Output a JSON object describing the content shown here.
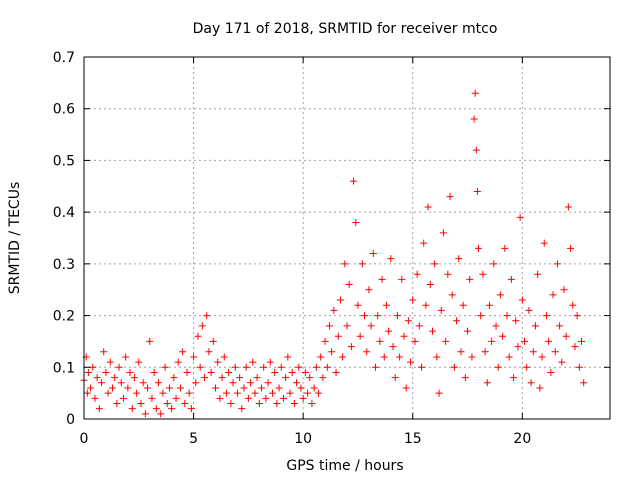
{
  "chart_data": {
    "type": "scatter",
    "title": "Day 171 of 2018, SRMTID for receiver mtco",
    "xlabel": "GPS time / hours",
    "ylabel": "SRMTID / TECUs",
    "xlim": [
      0,
      24
    ],
    "ylim": [
      0,
      0.7
    ],
    "xticks": [
      0,
      5,
      10,
      15,
      20
    ],
    "xtick_labels": [
      "0",
      "5",
      "10",
      "15",
      "20"
    ],
    "yticks": [
      0,
      0.1,
      0.2,
      0.3,
      0.4,
      0.5,
      0.6,
      0.7
    ],
    "ytick_labels": [
      "0",
      "0.1",
      "0.2",
      "0.3",
      "0.4",
      "0.5",
      "0.6",
      "0.7"
    ],
    "grid": true,
    "marker": "+",
    "series": [
      {
        "name": "SRMTID",
        "color": "#ff0000",
        "points": [
          [
            0.0,
            0.075
          ],
          [
            0.1,
            0.12
          ],
          [
            0.15,
            0.05
          ],
          [
            0.2,
            0.09
          ],
          [
            0.3,
            0.06
          ],
          [
            0.4,
            0.1
          ],
          [
            0.5,
            0.04
          ],
          [
            0.6,
            0.08
          ],
          [
            0.7,
            0.02
          ],
          [
            0.8,
            0.07
          ],
          [
            0.9,
            0.13
          ],
          [
            1.0,
            0.09
          ],
          [
            1.1,
            0.05
          ],
          [
            1.2,
            0.11
          ],
          [
            1.3,
            0.06
          ],
          [
            1.4,
            0.08
          ],
          [
            1.5,
            0.03
          ],
          [
            1.6,
            0.1
          ],
          [
            1.7,
            0.07
          ],
          [
            1.8,
            0.04
          ],
          [
            1.9,
            0.12
          ],
          [
            2.0,
            0.06
          ],
          [
            2.1,
            0.09
          ],
          [
            2.2,
            0.02
          ],
          [
            2.3,
            0.08
          ],
          [
            2.4,
            0.05
          ],
          [
            2.5,
            0.11
          ],
          [
            2.6,
            0.03
          ],
          [
            2.7,
            0.07
          ],
          [
            2.8,
            0.01
          ],
          [
            2.9,
            0.06
          ],
          [
            3.0,
            0.15
          ],
          [
            3.1,
            0.04
          ],
          [
            3.2,
            0.09
          ],
          [
            3.3,
            0.02
          ],
          [
            3.4,
            0.07
          ],
          [
            3.5,
            0.01
          ],
          [
            3.6,
            0.05
          ],
          [
            3.7,
            0.1
          ],
          [
            3.8,
            0.03
          ],
          [
            3.9,
            0.06
          ],
          [
            4.0,
            0.02
          ],
          [
            4.1,
            0.08
          ],
          [
            4.2,
            0.04
          ],
          [
            4.3,
            0.11
          ],
          [
            4.4,
            0.06
          ],
          [
            4.5,
            0.13
          ],
          [
            4.6,
            0.03
          ],
          [
            4.7,
            0.09
          ],
          [
            4.8,
            0.05
          ],
          [
            4.9,
            0.02
          ],
          [
            5.0,
            0.12
          ],
          [
            5.1,
            0.07
          ],
          [
            5.2,
            0.16
          ],
          [
            5.3,
            0.1
          ],
          [
            5.4,
            0.18
          ],
          [
            5.5,
            0.08
          ],
          [
            5.6,
            0.2
          ],
          [
            5.7,
            0.13
          ],
          [
            5.8,
            0.09
          ],
          [
            5.9,
            0.15
          ],
          [
            6.0,
            0.06
          ],
          [
            6.1,
            0.11
          ],
          [
            6.2,
            0.04
          ],
          [
            6.3,
            0.08
          ],
          [
            6.4,
            0.12
          ],
          [
            6.5,
            0.05
          ],
          [
            6.6,
            0.09
          ],
          [
            6.7,
            0.03
          ],
          [
            6.8,
            0.07
          ],
          [
            6.9,
            0.1
          ],
          [
            7.0,
            0.05
          ],
          [
            7.1,
            0.08
          ],
          [
            7.2,
            0.02
          ],
          [
            7.3,
            0.06
          ],
          [
            7.4,
            0.1
          ],
          [
            7.5,
            0.04
          ],
          [
            7.6,
            0.07
          ],
          [
            7.7,
            0.11
          ],
          [
            7.8,
            0.05
          ],
          [
            7.9,
            0.08
          ],
          [
            8.0,
            0.03
          ],
          [
            8.1,
            0.06
          ],
          [
            8.2,
            0.1
          ],
          [
            8.3,
            0.04
          ],
          [
            8.4,
            0.07
          ],
          [
            8.5,
            0.11
          ],
          [
            8.6,
            0.05
          ],
          [
            8.7,
            0.09
          ],
          [
            8.8,
            0.03
          ],
          [
            8.9,
            0.06
          ],
          [
            9.0,
            0.1
          ],
          [
            9.1,
            0.04
          ],
          [
            9.2,
            0.08
          ],
          [
            9.3,
            0.12
          ],
          [
            9.4,
            0.05
          ],
          [
            9.5,
            0.09
          ],
          [
            9.6,
            0.03
          ],
          [
            9.7,
            0.07
          ],
          [
            9.8,
            0.1
          ],
          [
            9.9,
            0.06
          ],
          [
            10.0,
            0.04
          ],
          [
            10.1,
            0.09
          ],
          [
            10.2,
            0.05
          ],
          [
            10.3,
            0.08
          ],
          [
            10.4,
            0.03
          ],
          [
            10.5,
            0.06
          ],
          [
            10.6,
            0.1
          ],
          [
            10.7,
            0.05
          ],
          [
            10.8,
            0.12
          ],
          [
            10.9,
            0.08
          ],
          [
            11.0,
            0.15
          ],
          [
            11.1,
            0.1
          ],
          [
            11.2,
            0.18
          ],
          [
            11.3,
            0.13
          ],
          [
            11.4,
            0.21
          ],
          [
            11.5,
            0.09
          ],
          [
            11.6,
            0.16
          ],
          [
            11.7,
            0.23
          ],
          [
            11.8,
            0.12
          ],
          [
            11.9,
            0.3
          ],
          [
            12.0,
            0.18
          ],
          [
            12.1,
            0.26
          ],
          [
            12.2,
            0.14
          ],
          [
            12.3,
            0.46
          ],
          [
            12.4,
            0.38
          ],
          [
            12.5,
            0.22
          ],
          [
            12.6,
            0.16
          ],
          [
            12.7,
            0.3
          ],
          [
            12.8,
            0.2
          ],
          [
            12.9,
            0.13
          ],
          [
            13.0,
            0.25
          ],
          [
            13.1,
            0.18
          ],
          [
            13.2,
            0.32
          ],
          [
            13.3,
            0.1
          ],
          [
            13.4,
            0.2
          ],
          [
            13.5,
            0.15
          ],
          [
            13.6,
            0.27
          ],
          [
            13.7,
            0.12
          ],
          [
            13.8,
            0.22
          ],
          [
            13.9,
            0.17
          ],
          [
            14.0,
            0.31
          ],
          [
            14.1,
            0.14
          ],
          [
            14.2,
            0.08
          ],
          [
            14.3,
            0.2
          ],
          [
            14.4,
            0.12
          ],
          [
            14.5,
            0.27
          ],
          [
            14.6,
            0.16
          ],
          [
            14.7,
            0.06
          ],
          [
            14.8,
            0.19
          ],
          [
            14.9,
            0.11
          ],
          [
            15.0,
            0.23
          ],
          [
            15.1,
            0.15
          ],
          [
            15.2,
            0.28
          ],
          [
            15.3,
            0.18
          ],
          [
            15.4,
            0.1
          ],
          [
            15.5,
            0.34
          ],
          [
            15.6,
            0.22
          ],
          [
            15.7,
            0.41
          ],
          [
            15.8,
            0.26
          ],
          [
            15.9,
            0.17
          ],
          [
            16.0,
            0.3
          ],
          [
            16.1,
            0.12
          ],
          [
            16.2,
            0.05
          ],
          [
            16.3,
            0.21
          ],
          [
            16.4,
            0.36
          ],
          [
            16.5,
            0.15
          ],
          [
            16.6,
            0.28
          ],
          [
            16.7,
            0.43
          ],
          [
            16.8,
            0.24
          ],
          [
            16.9,
            0.1
          ],
          [
            17.0,
            0.19
          ],
          [
            17.1,
            0.31
          ],
          [
            17.2,
            0.13
          ],
          [
            17.3,
            0.22
          ],
          [
            17.4,
            0.08
          ],
          [
            17.5,
            0.17
          ],
          [
            17.6,
            0.27
          ],
          [
            17.7,
            0.12
          ],
          [
            17.8,
            0.58
          ],
          [
            17.85,
            0.63
          ],
          [
            17.9,
            0.52
          ],
          [
            17.95,
            0.44
          ],
          [
            18.0,
            0.33
          ],
          [
            18.1,
            0.2
          ],
          [
            18.2,
            0.28
          ],
          [
            18.3,
            0.13
          ],
          [
            18.4,
            0.07
          ],
          [
            18.5,
            0.22
          ],
          [
            18.6,
            0.15
          ],
          [
            18.7,
            0.3
          ],
          [
            18.8,
            0.18
          ],
          [
            18.9,
            0.1
          ],
          [
            19.0,
            0.24
          ],
          [
            19.1,
            0.16
          ],
          [
            19.2,
            0.33
          ],
          [
            19.3,
            0.2
          ],
          [
            19.4,
            0.12
          ],
          [
            19.5,
            0.27
          ],
          [
            19.6,
            0.08
          ],
          [
            19.7,
            0.19
          ],
          [
            19.8,
            0.14
          ],
          [
            19.9,
            0.39
          ],
          [
            20.0,
            0.23
          ],
          [
            20.1,
            0.15
          ],
          [
            20.2,
            0.1
          ],
          [
            20.3,
            0.21
          ],
          [
            20.4,
            0.07
          ],
          [
            20.5,
            0.13
          ],
          [
            20.6,
            0.18
          ],
          [
            20.7,
            0.28
          ],
          [
            20.8,
            0.06
          ],
          [
            20.9,
            0.12
          ],
          [
            21.0,
            0.34
          ],
          [
            21.1,
            0.2
          ],
          [
            21.2,
            0.15
          ],
          [
            21.3,
            0.09
          ],
          [
            21.4,
            0.24
          ],
          [
            21.5,
            0.13
          ],
          [
            21.6,
            0.3
          ],
          [
            21.7,
            0.18
          ],
          [
            21.8,
            0.11
          ],
          [
            21.9,
            0.25
          ],
          [
            22.0,
            0.16
          ],
          [
            22.1,
            0.41
          ],
          [
            22.2,
            0.33
          ],
          [
            22.3,
            0.22
          ],
          [
            22.4,
            0.14
          ],
          [
            22.5,
            0.2
          ],
          [
            22.6,
            0.1
          ],
          [
            22.7,
            0.15
          ],
          [
            22.8,
            0.07
          ]
        ]
      }
    ]
  }
}
